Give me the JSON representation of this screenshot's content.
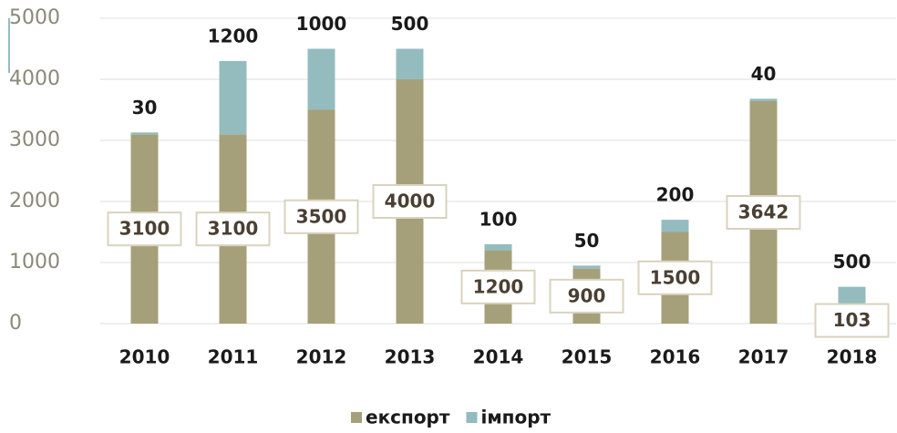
{
  "chart_data": {
    "type": "stacked_bar",
    "categories": [
      "2010",
      "2011",
      "2012",
      "2013",
      "2014",
      "2015",
      "2016",
      "2017",
      "2018"
    ],
    "series": [
      {
        "name": "експорт",
        "color": "#a6a07a",
        "values": [
          3100,
          3100,
          3500,
          4000,
          1200,
          900,
          1500,
          3642,
          103
        ]
      },
      {
        "name": "імпорт",
        "color": "#94bcbf",
        "values": [
          30,
          1200,
          1000,
          500,
          100,
          50,
          200,
          40,
          500
        ]
      }
    ],
    "ylim": [
      0,
      5000
    ],
    "yticks": [
      0,
      1000,
      2000,
      3000,
      4000,
      5000
    ],
    "grid": true,
    "legend": "bottom"
  }
}
